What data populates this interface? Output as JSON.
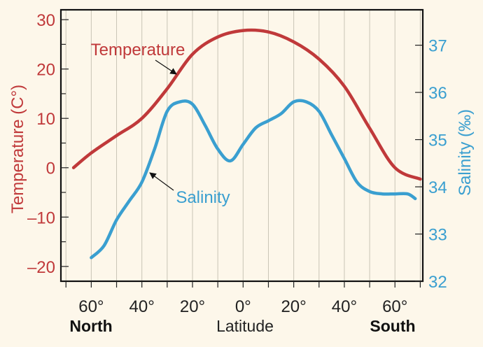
{
  "chart_data": {
    "type": "line",
    "xlabel": "Latitude",
    "x_ticks": [
      {
        "value": -60,
        "label": "60°"
      },
      {
        "value": -40,
        "label": "40°"
      },
      {
        "value": -20,
        "label": "20°"
      },
      {
        "value": 0,
        "label": "0°"
      },
      {
        "value": 20,
        "label": "20°"
      },
      {
        "value": 40,
        "label": "40°"
      },
      {
        "value": 60,
        "label": "60°"
      }
    ],
    "xlim": [
      -72,
      71
    ],
    "x_minor_step": 10,
    "region_labels": {
      "left": "North",
      "right": "South"
    },
    "y_left": {
      "label": "Temperature (C°)",
      "ylim": [
        -23,
        32
      ],
      "ticks": [
        {
          "value": 30,
          "label": "30"
        },
        {
          "value": 20,
          "label": "20"
        },
        {
          "value": 10,
          "label": "10"
        },
        {
          "value": 0,
          "label": "0"
        },
        {
          "value": -10,
          "label": "–10"
        },
        {
          "value": -20,
          "label": "–20"
        }
      ],
      "minor_step": 5
    },
    "y_right": {
      "label": "Salinity (‰)",
      "ylim": [
        32,
        37.75
      ],
      "ticks": [
        {
          "value": 37,
          "label": "37"
        },
        {
          "value": 36,
          "label": "36"
        },
        {
          "value": 35,
          "label": "35"
        },
        {
          "value": 34,
          "label": "34"
        },
        {
          "value": 33,
          "label": "33"
        },
        {
          "value": 32,
          "label": "32"
        }
      ]
    },
    "series": [
      {
        "name": "Temperature",
        "axis": "left",
        "color": "#c0393a",
        "x": [
          -67,
          -60,
          -50,
          -40,
          -30,
          -20,
          -10,
          0,
          10,
          20,
          30,
          40,
          50,
          60,
          70
        ],
        "y": [
          0,
          3,
          6.5,
          10,
          16,
          23,
          26.5,
          27.8,
          27.5,
          25.5,
          22,
          16.5,
          8,
          0,
          -2.3
        ]
      },
      {
        "name": "Salinity",
        "axis": "right",
        "color": "#3a9fd0",
        "x": [
          -60,
          -55,
          -50,
          -45,
          -40,
          -35,
          -30,
          -25,
          -20,
          -15,
          -10,
          -5,
          0,
          5,
          10,
          15,
          20,
          25,
          30,
          35,
          40,
          45,
          50,
          55,
          60,
          65,
          68
        ],
        "y": [
          32.5,
          32.75,
          33.3,
          33.7,
          34.1,
          34.8,
          35.6,
          35.8,
          35.75,
          35.3,
          34.8,
          34.55,
          34.9,
          35.25,
          35.4,
          35.55,
          35.8,
          35.8,
          35.6,
          35.1,
          34.6,
          34.1,
          33.9,
          33.85,
          33.85,
          33.85,
          33.75
        ]
      }
    ],
    "annotations": [
      {
        "text": "Temperature",
        "series": "Temperature",
        "arrow_to_x": -27
      },
      {
        "text": "Salinity",
        "series": "Salinity",
        "arrow_to_x": -38
      }
    ]
  }
}
